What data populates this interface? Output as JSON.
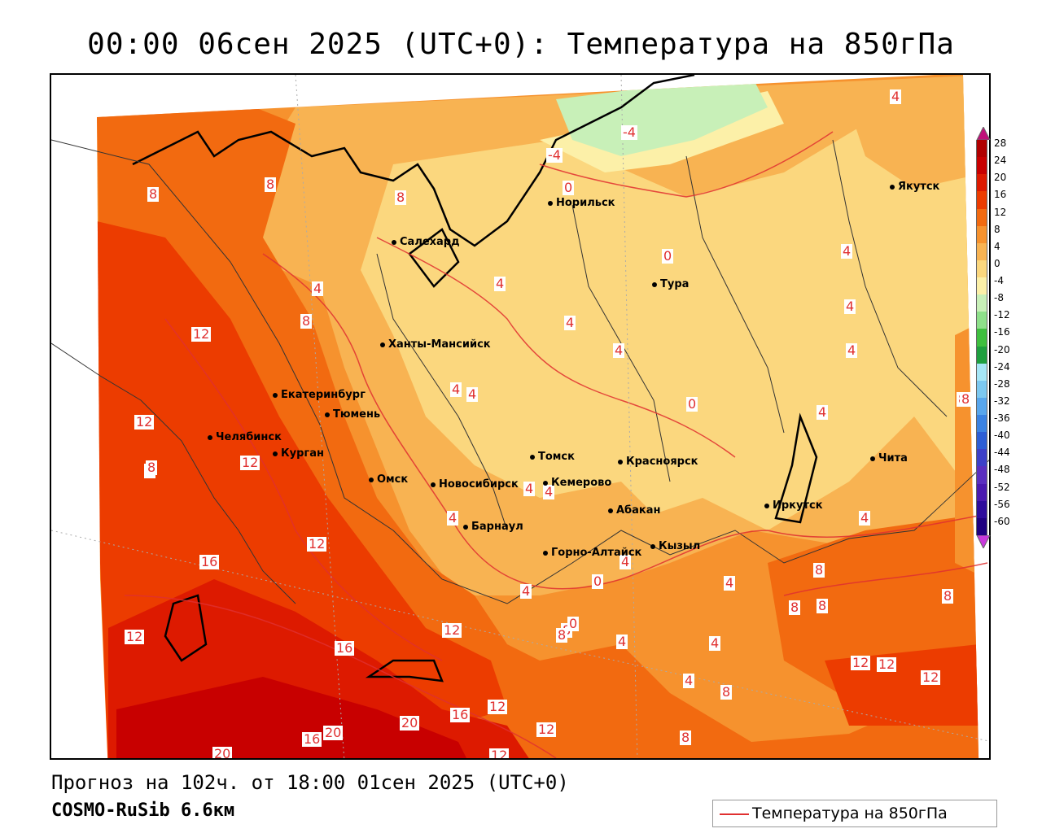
{
  "title": "00:00 06сен 2025 (UTC+0): Температура на 850гПа",
  "footer": {
    "forecast": "Прогноз на 102ч. от 18:00 01сен 2025 (UTC+0)",
    "model": "COSMO-RuSib 6.6км"
  },
  "legend": {
    "label": "Температура на 850гПа",
    "color": "#e03030"
  },
  "colorbar": {
    "ticks": [
      "28",
      "24",
      "20",
      "16",
      "12",
      "8",
      "4",
      "0",
      "-4",
      "-8",
      "-12",
      "-16",
      "-20",
      "-24",
      "-28",
      "-32",
      "-36",
      "-40",
      "-44",
      "-48",
      "-52",
      "-56",
      "-60"
    ],
    "colors": [
      "#b00000",
      "#c80000",
      "#dd1a00",
      "#ec3c00",
      "#f26a10",
      "#f6922e",
      "#f8b352",
      "#fbd77e",
      "#fcf0a8",
      "#c8f0b8",
      "#8ee08a",
      "#3fbf3f",
      "#1f9f3f",
      "#a6e6f6",
      "#7cc8f0",
      "#58a6ec",
      "#3a82e2",
      "#2c5ed6",
      "#3d40c8",
      "#5a2fc0",
      "#4a1ab0",
      "#2e0c9c",
      "#1f0080"
    ]
  },
  "cities": [
    {
      "name": "Якутск"
    },
    {
      "name": "Норильск"
    },
    {
      "name": "Салехард"
    },
    {
      "name": "Тура"
    },
    {
      "name": "Ханты-Мансийск"
    },
    {
      "name": "Екатеринбург"
    },
    {
      "name": "Тюмень"
    },
    {
      "name": "Челябинск"
    },
    {
      "name": "Курган"
    },
    {
      "name": "Омск"
    },
    {
      "name": "Новосибирск"
    },
    {
      "name": "Томск"
    },
    {
      "name": "Кемерово"
    },
    {
      "name": "Красноярск"
    },
    {
      "name": "Абакан"
    },
    {
      "name": "Барнаул"
    },
    {
      "name": "Горно-Алтайск"
    },
    {
      "name": "Кызыл"
    },
    {
      "name": "Иркутск"
    },
    {
      "name": "Чита"
    }
  ],
  "contour_labels": [
    "4",
    "-4",
    "-4",
    "0",
    "8",
    "8",
    "8",
    "8",
    "4",
    "4",
    "0",
    "4",
    "4",
    "12",
    "12",
    "12",
    "8",
    "4",
    "4",
    "4",
    "0",
    "4",
    "4",
    "4",
    "4",
    "12",
    "16",
    "12",
    "8",
    "12",
    "16",
    "12",
    "16",
    "20",
    "20",
    "20",
    "16",
    "12",
    "12",
    "12",
    "12",
    "12",
    "8",
    "8",
    "8",
    "8",
    "8",
    "8",
    "8",
    "4",
    "4",
    "4",
    "0",
    "0",
    "4",
    "4",
    "4",
    "4",
    "4",
    "4",
    "8",
    "8",
    "8"
  ]
}
